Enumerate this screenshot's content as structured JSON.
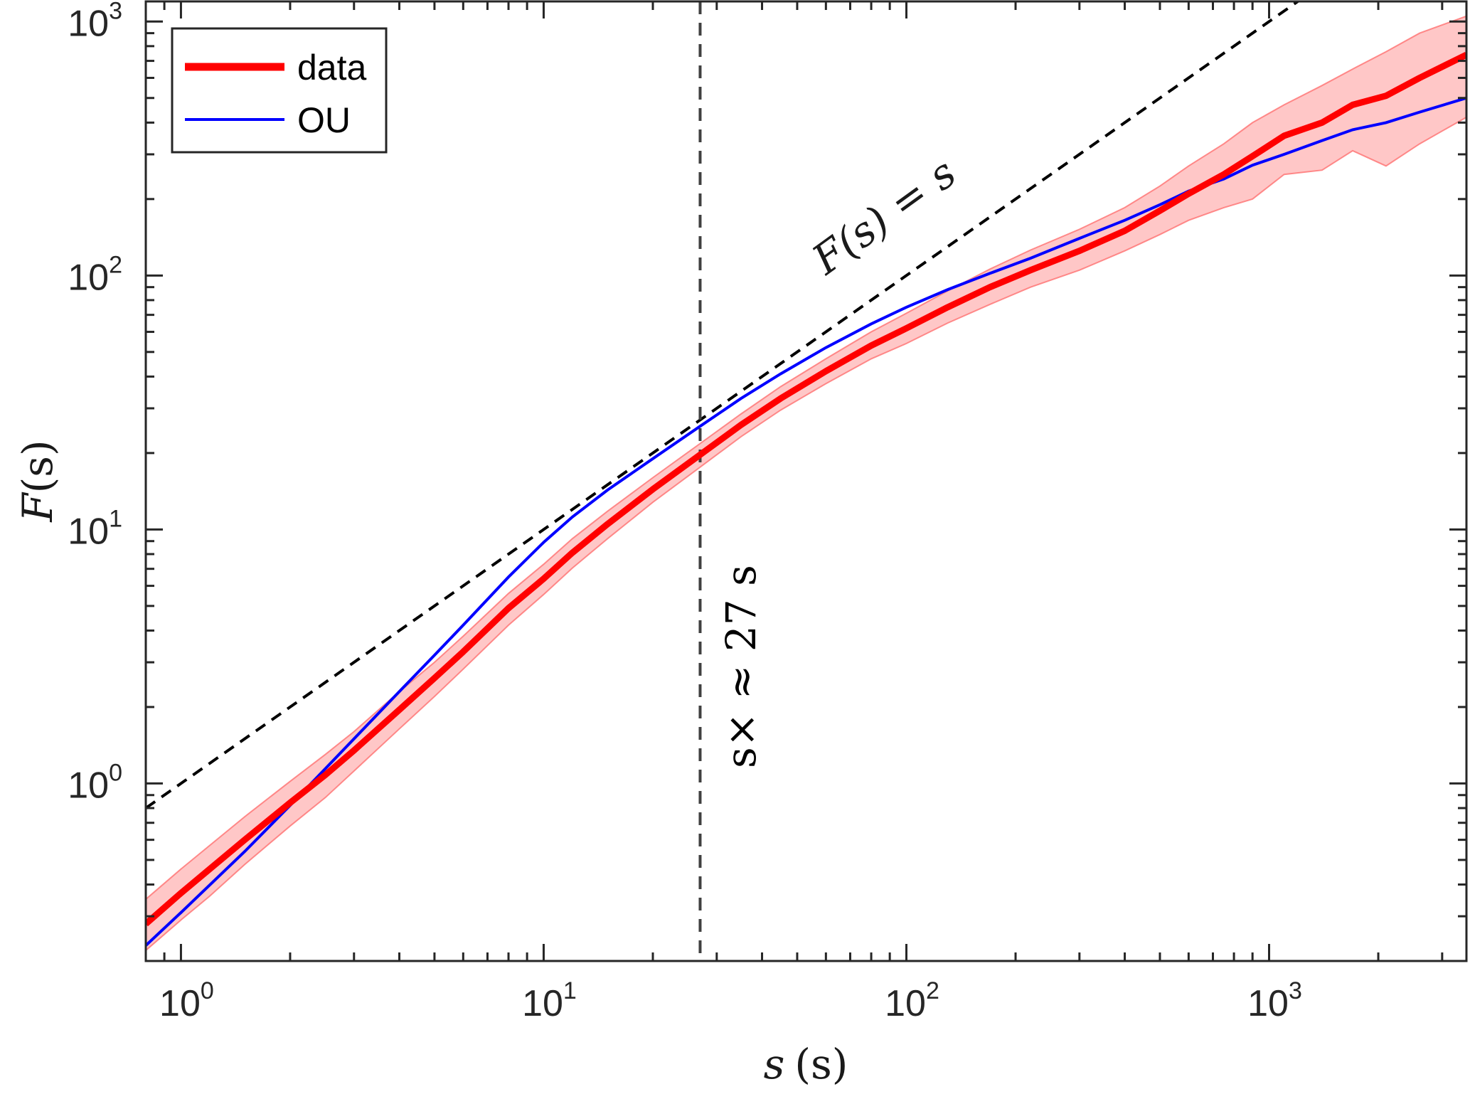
{
  "chart_data": {
    "type": "line",
    "xscale": "log",
    "yscale": "log",
    "xlim": [
      0.8,
      3500
    ],
    "ylim": [
      0.2,
      1200
    ],
    "xlabel": {
      "var": "s",
      "unit": "(s)"
    },
    "ylabel": {
      "var": "F",
      "arg": "(s)"
    },
    "xticks": [
      {
        "value": 1,
        "base": "10",
        "exp": "0"
      },
      {
        "value": 10,
        "base": "10",
        "exp": "1"
      },
      {
        "value": 100,
        "base": "10",
        "exp": "2"
      },
      {
        "value": 1000,
        "base": "10",
        "exp": "3"
      }
    ],
    "yticks": [
      {
        "value": 1,
        "base": "10",
        "exp": "0"
      },
      {
        "value": 10,
        "base": "10",
        "exp": "1"
      },
      {
        "value": 100,
        "base": "10",
        "exp": "2"
      },
      {
        "value": 1000,
        "base": "10",
        "exp": "3"
      }
    ],
    "series": [
      {
        "name": "data",
        "color": "#ff0000",
        "x": [
          0.8,
          1.0,
          1.2,
          1.5,
          2.0,
          2.5,
          3.0,
          4.0,
          5.0,
          6.0,
          8.0,
          10.0,
          12.0,
          15.0,
          20.0,
          27.0,
          35.0,
          45.0,
          60.0,
          80.0,
          100.0,
          130.0,
          170.0,
          220.0,
          300.0,
          400.0,
          500.0,
          600.0,
          750.0,
          900.0,
          1100.0,
          1400.0,
          1700.0,
          2100.0,
          2600.0,
          3500.0
        ],
        "values": [
          0.28,
          0.37,
          0.46,
          0.6,
          0.84,
          1.08,
          1.35,
          1.95,
          2.6,
          3.3,
          4.9,
          6.4,
          8.1,
          10.5,
          14.4,
          19.7,
          25.8,
          32.8,
          42.0,
          53.0,
          62.0,
          75.0,
          90.0,
          105.0,
          125.0,
          150.0,
          180.0,
          210.0,
          250.0,
          295.0,
          355.0,
          400.0,
          470.0,
          510.0,
          600.0,
          740.0
        ],
        "band_upper": [
          0.35,
          0.46,
          0.57,
          0.74,
          1.02,
          1.3,
          1.6,
          2.3,
          3.0,
          3.8,
          5.6,
          7.3,
          9.2,
          11.8,
          16.0,
          21.8,
          28.5,
          36.5,
          47.0,
          60.0,
          71.0,
          87.0,
          106.0,
          126.0,
          152.0,
          185.0,
          225.0,
          270.0,
          330.0,
          400.0,
          470.0,
          560.0,
          650.0,
          760.0,
          900.0,
          1050.0
        ],
        "band_lower": [
          0.22,
          0.29,
          0.36,
          0.48,
          0.68,
          0.88,
          1.12,
          1.64,
          2.2,
          2.82,
          4.2,
          5.55,
          7.05,
          9.2,
          12.8,
          17.6,
          23.2,
          29.5,
          37.5,
          47.0,
          54.0,
          65.0,
          77.0,
          90.0,
          105.0,
          125.0,
          145.0,
          165.0,
          185.0,
          200.0,
          250.0,
          260.0,
          310.0,
          270.0,
          330.0,
          420.0
        ]
      },
      {
        "name": "OU",
        "color": "#0000ff",
        "x": [
          0.8,
          1.0,
          1.5,
          2.0,
          3.0,
          4.0,
          5.0,
          6.0,
          8.0,
          10.0,
          12.0,
          15.0,
          20.0,
          27.0,
          35.0,
          45.0,
          60.0,
          80.0,
          100.0,
          130.0,
          170.0,
          220.0,
          300.0,
          400.0,
          500.0,
          600.0,
          750.0,
          900.0,
          1100.0,
          1400.0,
          1700.0,
          2100.0,
          2600.0,
          3500.0
        ],
        "values": [
          0.23,
          0.31,
          0.54,
          0.82,
          1.5,
          2.3,
          3.2,
          4.2,
          6.5,
          8.9,
          11.2,
          14.3,
          19.0,
          25.5,
          32.8,
          41.0,
          52.0,
          64.5,
          75.0,
          88.0,
          102.0,
          117.0,
          140.0,
          165.0,
          190.0,
          215.0,
          240.0,
          272.0,
          300.0,
          340.0,
          375.0,
          400.0,
          440.0,
          500.0
        ]
      }
    ],
    "reference_line": {
      "label": "F(s) = s",
      "slope": 1,
      "style": "dashed",
      "color": "#000000"
    },
    "vertical_line": {
      "x": 27,
      "label": "s× ≈ 27 s",
      "style": "dashed",
      "color": "#404040"
    },
    "legend": {
      "position": "top-left",
      "entries": [
        "data",
        "OU"
      ]
    },
    "grid": false
  }
}
